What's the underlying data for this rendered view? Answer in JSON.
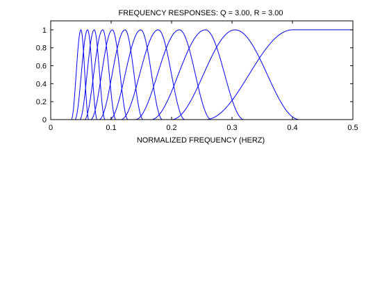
{
  "chart_data": {
    "type": "line",
    "title": "FREQUENCY RESPONSES: Q = 3.00, R = 3.00",
    "xlabel": "NORMALIZED FREQUENCY (HERZ)",
    "ylabel": "",
    "xlim": [
      0,
      0.5
    ],
    "ylim": [
      0,
      1.1
    ],
    "xticks": [
      "0",
      "0.1",
      "0.2",
      "0.3",
      "0.4",
      "0.5"
    ],
    "yticks": [
      "0",
      "0.2",
      "0.4",
      "0.6",
      "0.8",
      "1"
    ],
    "grid": false,
    "legend": "none",
    "line_color": "#0000ff",
    "bandpass_filters": [
      {
        "peak": 0.05,
        "start": 0.034,
        "end": 0.063
      },
      {
        "peak": 0.061,
        "start": 0.04,
        "end": 0.077
      },
      {
        "peak": 0.072,
        "start": 0.048,
        "end": 0.09
      },
      {
        "peak": 0.086,
        "start": 0.056,
        "end": 0.108
      },
      {
        "peak": 0.102,
        "start": 0.066,
        "end": 0.128
      },
      {
        "peak": 0.123,
        "start": 0.08,
        "end": 0.153
      },
      {
        "peak": 0.149,
        "start": 0.097,
        "end": 0.185
      },
      {
        "peak": 0.178,
        "start": 0.116,
        "end": 0.222
      },
      {
        "peak": 0.213,
        "start": 0.14,
        "end": 0.266
      },
      {
        "peak": 0.256,
        "start": 0.166,
        "end": 0.32
      },
      {
        "peak": 0.305,
        "start": 0.2,
        "end": 0.412
      }
    ],
    "highpass_filter": {
      "start": 0.256,
      "top": 0.4,
      "end": 0.5
    }
  }
}
